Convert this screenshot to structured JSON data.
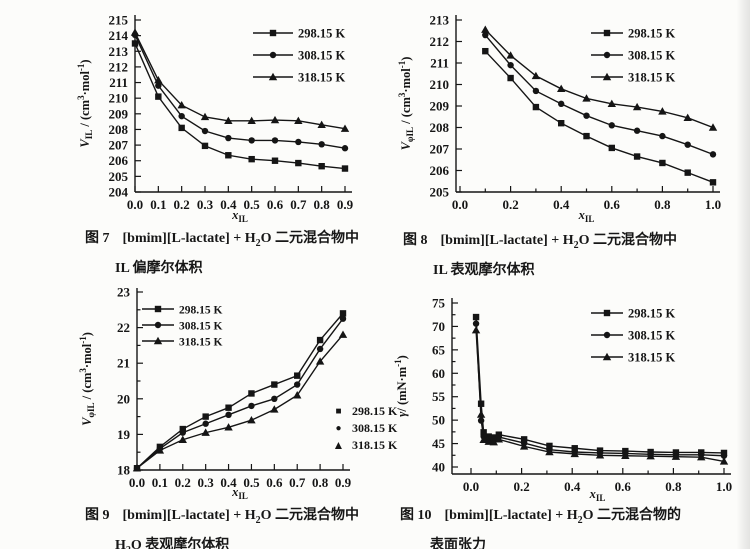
{
  "page": {
    "background": "#fcfcfa",
    "ink": "#151515"
  },
  "chart_data": [
    {
      "id": "figure-7",
      "type": "line",
      "xlabel": "*x*_{IL}",
      "ylabel": "*V*_{IL} / (cm^{3}·mol^{-1})",
      "xlim": [
        0,
        0.9
      ],
      "ylim": [
        204,
        215
      ],
      "grid": false,
      "xticks": {
        "values": [
          0,
          0.1,
          0.2,
          0.3,
          0.4,
          0.5,
          0.6,
          0.7,
          0.8,
          0.9
        ],
        "labels": [
          "0.0",
          "0.1",
          "0.2",
          "0.3",
          "0.4",
          "0.5",
          "0.6",
          "0.7",
          "0.8",
          "0.9"
        ]
      },
      "yticks": {
        "values": [
          204,
          205,
          206,
          207,
          208,
          209,
          210,
          211,
          212,
          213,
          214,
          215
        ],
        "labels": [
          "204",
          "205",
          "206",
          "207",
          "208",
          "209",
          "210",
          "211",
          "212",
          "213",
          "214",
          "215"
        ]
      },
      "xminors": [],
      "yminors": [],
      "legend": {
        "style": "line-marker",
        "position": "top-right",
        "entries": [
          {
            "label": "298.15 K",
            "marker": "square"
          },
          {
            "label": "308.15 K",
            "marker": "circle"
          },
          {
            "label": "318.15 K",
            "marker": "triangle"
          }
        ]
      },
      "series": [
        {
          "name": "298.15 K",
          "marker": "square",
          "x": [
            0,
            0.1,
            0.2,
            0.3,
            0.4,
            0.5,
            0.6,
            0.7,
            0.8,
            0.9
          ],
          "y": [
            213.5,
            210.1,
            208.1,
            206.95,
            206.35,
            206.1,
            206.0,
            205.85,
            205.65,
            205.5
          ]
        },
        {
          "name": "308.15 K",
          "marker": "circle",
          "x": [
            0,
            0.1,
            0.2,
            0.3,
            0.4,
            0.5,
            0.6,
            0.7,
            0.8,
            0.9
          ],
          "y": [
            214.05,
            210.8,
            208.85,
            207.9,
            207.45,
            207.3,
            207.3,
            207.2,
            207.05,
            206.8
          ]
        },
        {
          "name": "318.15 K",
          "marker": "triangle",
          "x": [
            0,
            0.1,
            0.2,
            0.3,
            0.4,
            0.5,
            0.6,
            0.7,
            0.8,
            0.9
          ],
          "y": [
            214.2,
            211.15,
            209.55,
            208.8,
            208.55,
            208.55,
            208.6,
            208.55,
            208.3,
            208.05
          ]
        }
      ],
      "caption": {
        "label": "图 7",
        "line1": "[bmim][L-lactate] + H_{2}O 二元混合物中",
        "line2": "IL 偏摩尔体积"
      }
    },
    {
      "id": "figure-8",
      "type": "line",
      "xlabel": "*x*_{IL}",
      "ylabel": "*V*_{φIL} / (cm^{3}·mol^{-1})",
      "xlim": [
        0,
        1.0
      ],
      "ylim": [
        205,
        213
      ],
      "grid": false,
      "xticks": {
        "values": [
          0,
          0.2,
          0.4,
          0.6,
          0.8,
          1.0
        ],
        "labels": [
          "0.0",
          "0.2",
          "0.4",
          "0.6",
          "0.8",
          "1.0"
        ]
      },
      "yticks": {
        "values": [
          205,
          206,
          207,
          208,
          209,
          210,
          211,
          212,
          213
        ],
        "labels": [
          "205",
          "206",
          "207",
          "208",
          "209",
          "210",
          "211",
          "212",
          "213"
        ]
      },
      "xminors": [
        0.1,
        0.3,
        0.5,
        0.7,
        0.9
      ],
      "yminors": [],
      "legend": {
        "style": "line-marker",
        "position": "top-right",
        "entries": [
          {
            "label": "298.15 K",
            "marker": "square"
          },
          {
            "label": "308.15 K",
            "marker": "circle"
          },
          {
            "label": "318.15 K",
            "marker": "triangle"
          }
        ]
      },
      "series": [
        {
          "name": "298.15 K",
          "marker": "square",
          "x": [
            0.1,
            0.2,
            0.3,
            0.4,
            0.5,
            0.6,
            0.7,
            0.8,
            0.9,
            1.0
          ],
          "y": [
            211.55,
            210.3,
            208.95,
            208.2,
            207.6,
            207.05,
            206.65,
            206.35,
            205.9,
            205.45
          ]
        },
        {
          "name": "308.15 K",
          "marker": "circle",
          "x": [
            0.1,
            0.2,
            0.3,
            0.4,
            0.5,
            0.6,
            0.7,
            0.8,
            0.9,
            1.0
          ],
          "y": [
            212.3,
            210.9,
            209.7,
            209.1,
            208.55,
            208.1,
            207.85,
            207.6,
            207.2,
            206.75
          ]
        },
        {
          "name": "318.15 K",
          "marker": "triangle",
          "x": [
            0.1,
            0.2,
            0.3,
            0.4,
            0.5,
            0.6,
            0.7,
            0.8,
            0.9,
            1.0
          ],
          "y": [
            212.55,
            211.35,
            210.4,
            209.8,
            209.35,
            209.1,
            208.95,
            208.75,
            208.45,
            208.0
          ]
        }
      ],
      "caption": {
        "label": "图 8",
        "line1": "[bmim][L-lactate] + H_{2}O 二元混合物中",
        "line2": "IL 表观摩尔体积"
      }
    },
    {
      "id": "figure-9",
      "type": "line",
      "xlabel": "*x*_{IL}",
      "ylabel": "*V*_{φIL} / (cm^{3}·mol^{-1})",
      "xlim": [
        0,
        0.9
      ],
      "ylim": [
        18,
        23
      ],
      "grid": false,
      "xticks": {
        "values": [
          0,
          0.1,
          0.2,
          0.3,
          0.4,
          0.5,
          0.6,
          0.7,
          0.8,
          0.9
        ],
        "labels": [
          "0.0",
          "0.1",
          "0.2",
          "0.3",
          "0.4",
          "0.5",
          "0.6",
          "0.7",
          "0.8",
          "0.9"
        ]
      },
      "yticks": {
        "values": [
          18,
          19,
          20,
          21,
          22,
          23
        ],
        "labels": [
          "18",
          "19",
          "20",
          "21",
          "22",
          "23"
        ]
      },
      "xminors": [],
      "yminors": [
        18.5,
        19.5,
        20.5,
        21.5,
        22.5
      ],
      "legend": {
        "style": "line-marker",
        "position": "top-left",
        "entries": [
          {
            "label": "298.15 K",
            "marker": "square"
          },
          {
            "label": "308.15 K",
            "marker": "circle"
          },
          {
            "label": "318.15 K",
            "marker": "triangle"
          }
        ]
      },
      "extra_legend": {
        "entries": [
          {
            "glyph": "■",
            "label": "298.15 K"
          },
          {
            "glyph": "●",
            "label": "308.15 K"
          },
          {
            "glyph": "▲",
            "label": "318.15 K"
          }
        ]
      },
      "series": [
        {
          "name": "298.15 K",
          "marker": "square",
          "x": [
            0,
            0.1,
            0.2,
            0.3,
            0.4,
            0.5,
            0.6,
            0.7,
            0.8,
            0.9
          ],
          "y": [
            18.05,
            18.65,
            19.15,
            19.5,
            19.75,
            20.15,
            20.4,
            20.65,
            21.65,
            22.4
          ]
        },
        {
          "name": "308.15 K",
          "marker": "circle",
          "x": [
            0,
            0.1,
            0.2,
            0.3,
            0.4,
            0.5,
            0.6,
            0.7,
            0.8,
            0.9
          ],
          "y": [
            18.05,
            18.6,
            19.05,
            19.3,
            19.55,
            19.8,
            20.0,
            20.4,
            21.4,
            22.25
          ]
        },
        {
          "name": "318.15 K",
          "marker": "triangle",
          "x": [
            0,
            0.1,
            0.2,
            0.3,
            0.4,
            0.5,
            0.6,
            0.7,
            0.8,
            0.9
          ],
          "y": [
            18.05,
            18.55,
            18.85,
            19.05,
            19.2,
            19.4,
            19.7,
            20.1,
            21.05,
            21.8
          ]
        }
      ],
      "caption": {
        "label": "图 9",
        "line1": "[bmim][L-lactate] + H_{2}O 二元混合物中",
        "line2": "H_{2}O 表观摩尔体积"
      }
    },
    {
      "id": "figure-10",
      "type": "line",
      "xlabel": "*x*_{IL}",
      "ylabel": "*γ*/ (mN·m^{-1})",
      "xlim": [
        0,
        1.0
      ],
      "ylim": [
        40,
        75
      ],
      "grid": false,
      "xticks": {
        "values": [
          0,
          0.2,
          0.4,
          0.6,
          0.8,
          1.0
        ],
        "labels": [
          "0.0",
          "0.2",
          "0.4",
          "0.6",
          "0.8",
          "1.0"
        ]
      },
      "yticks": {
        "values": [
          40,
          45,
          50,
          55,
          60,
          65,
          70,
          75
        ],
        "labels": [
          "40",
          "45",
          "50",
          "55",
          "60",
          "65",
          "70",
          "75"
        ]
      },
      "xminors": [
        0.1,
        0.3,
        0.5,
        0.7,
        0.9
      ],
      "yminors": [
        42.5,
        47.5,
        52.5,
        57.5,
        62.5,
        67.5,
        72.5
      ],
      "legend": {
        "style": "line-marker",
        "position": "top-right",
        "entries": [
          {
            "label": "298.15 K",
            "marker": "square"
          },
          {
            "label": "308.15 K",
            "marker": "circle"
          },
          {
            "label": "318.15 K",
            "marker": "triangle"
          }
        ]
      },
      "series": [
        {
          "name": "298.15 K",
          "marker": "square",
          "x": [
            0.02,
            0.04,
            0.05,
            0.07,
            0.09,
            0.11,
            0.21,
            0.31,
            0.41,
            0.51,
            0.61,
            0.71,
            0.81,
            0.91,
            1.0
          ],
          "y": [
            72.0,
            53.5,
            47.4,
            46.5,
            46.3,
            46.9,
            45.9,
            44.5,
            44.0,
            43.5,
            43.4,
            43.2,
            43.1,
            43.1,
            43.0
          ]
        },
        {
          "name": "308.15 K",
          "marker": "circle",
          "x": [
            0.02,
            0.04,
            0.05,
            0.07,
            0.09,
            0.11,
            0.21,
            0.31,
            0.41,
            0.51,
            0.61,
            0.71,
            0.81,
            0.91,
            1.0
          ],
          "y": [
            70.6,
            49.9,
            46.5,
            45.9,
            45.8,
            46.4,
            45.1,
            43.7,
            43.2,
            43.0,
            42.9,
            42.7,
            42.6,
            42.6,
            42.4
          ]
        },
        {
          "name": "318.15 K",
          "marker": "triangle",
          "x": [
            0.02,
            0.04,
            0.05,
            0.07,
            0.09,
            0.11,
            0.21,
            0.31,
            0.41,
            0.51,
            0.61,
            0.71,
            0.81,
            0.91,
            1.0
          ],
          "y": [
            69.2,
            51.2,
            45.8,
            45.4,
            45.3,
            45.9,
            44.4,
            43.2,
            42.8,
            42.5,
            42.4,
            42.3,
            42.2,
            42.1,
            41.2
          ]
        }
      ],
      "caption": {
        "label": "图 10",
        "line1": "[bmim][L-lactate] + H_{2}O 二元混合物的",
        "line2": "表面张力"
      }
    }
  ]
}
